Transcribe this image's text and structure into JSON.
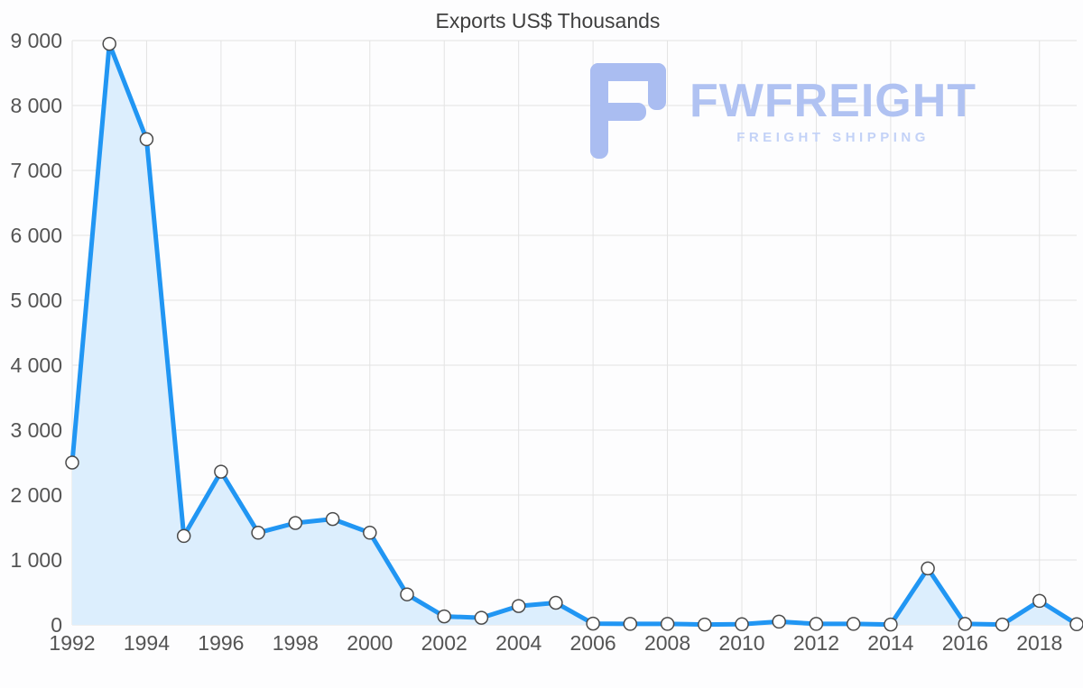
{
  "chart_data": {
    "type": "area",
    "title": "Exports US$ Thousands",
    "xlabel": "",
    "ylabel": "",
    "x": [
      1992,
      1993,
      1994,
      1995,
      1996,
      1997,
      1998,
      1999,
      2000,
      2001,
      2002,
      2003,
      2004,
      2005,
      2006,
      2007,
      2008,
      2009,
      2010,
      2011,
      2012,
      2013,
      2014,
      2015,
      2016,
      2017,
      2018,
      2019
    ],
    "series": [
      {
        "name": "Exports US$ Thousands",
        "values": [
          2500,
          8950,
          7480,
          1370,
          2360,
          1420,
          1570,
          1630,
          1420,
          470,
          130,
          110,
          290,
          340,
          20,
          15,
          15,
          5,
          10,
          50,
          15,
          15,
          5,
          870,
          15,
          5,
          370,
          10
        ]
      }
    ],
    "ylim": [
      0,
      9000
    ],
    "y_tick_values": [
      0,
      1000,
      2000,
      3000,
      4000,
      5000,
      6000,
      7000,
      8000,
      9000
    ],
    "y_ticks": [
      "0",
      "1 000",
      "2 000",
      "3 000",
      "4 000",
      "5 000",
      "6 000",
      "7 000",
      "8 000",
      "9 000"
    ],
    "x_ticks": [
      1992,
      1994,
      1996,
      1998,
      2000,
      2002,
      2004,
      2006,
      2008,
      2010,
      2012,
      2014,
      2016,
      2018
    ],
    "grid": true,
    "legend": "none",
    "colors": {
      "line": "#2196f3",
      "fill": "#dceefd",
      "marker_fill": "#ffffff",
      "marker_stroke": "#4a4a4a",
      "grid": "#e3e3e3",
      "axis_text": "#545454",
      "title_text": "#3f3f3f"
    }
  },
  "watermark": {
    "brand": "FWFREIGHT",
    "tagline": "FREIGHT SHIPPING",
    "brand_color": "#b0c2f2",
    "tagline_color": "#c3d2f7",
    "logo_color": "#aabdf1",
    "logo_icon": "fwfreight-logo-icon"
  }
}
